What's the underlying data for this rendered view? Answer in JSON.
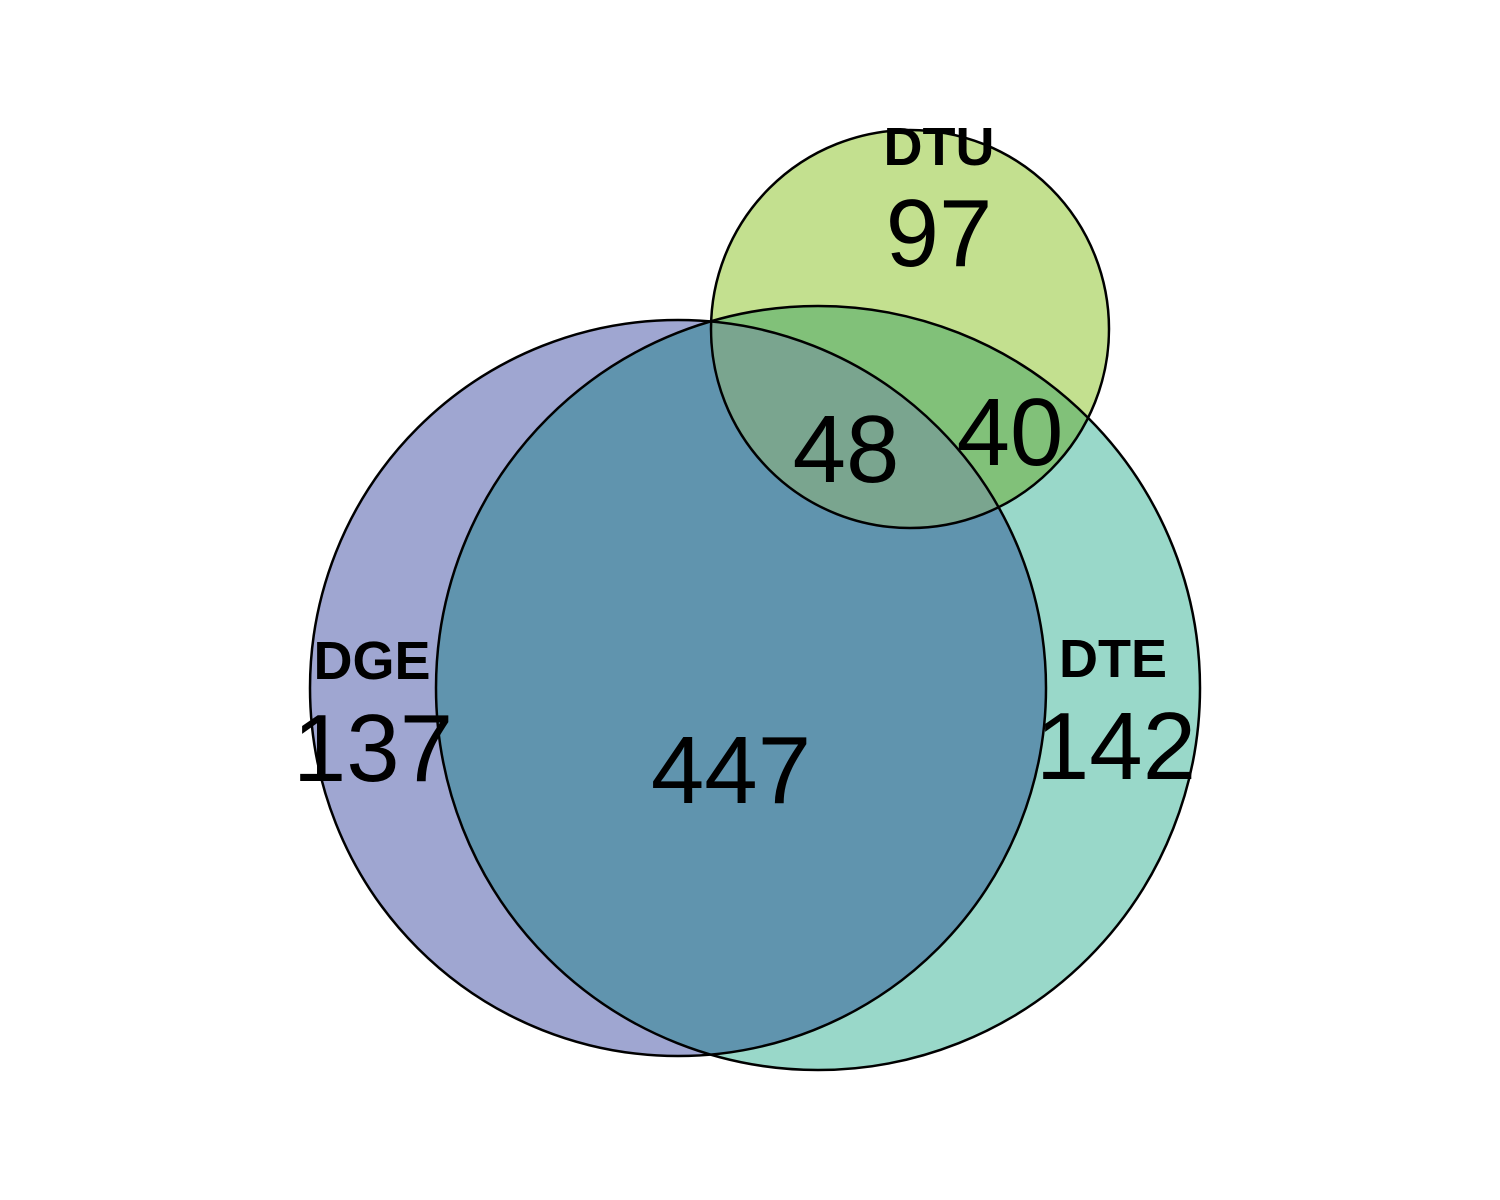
{
  "diagram": {
    "type": "venn",
    "sets": [
      {
        "id": "dge",
        "label": "DGE",
        "color": "#9fa6d1",
        "unique_count": "137"
      },
      {
        "id": "dte",
        "label": "DTE",
        "color": "#99d8c9",
        "unique_count": "142"
      },
      {
        "id": "dtu",
        "label": "DTU",
        "color": "#c3e08f",
        "unique_count": "97"
      }
    ],
    "overlap_colors": {
      "dge_dte": "#6094ae",
      "dtu_dte": "#81c179",
      "dge_dte_dtu": "#7aa58f"
    },
    "intersections": {
      "dge_dte": "447",
      "dge_dte_dtu": "48",
      "dte_dtu": "40"
    }
  }
}
